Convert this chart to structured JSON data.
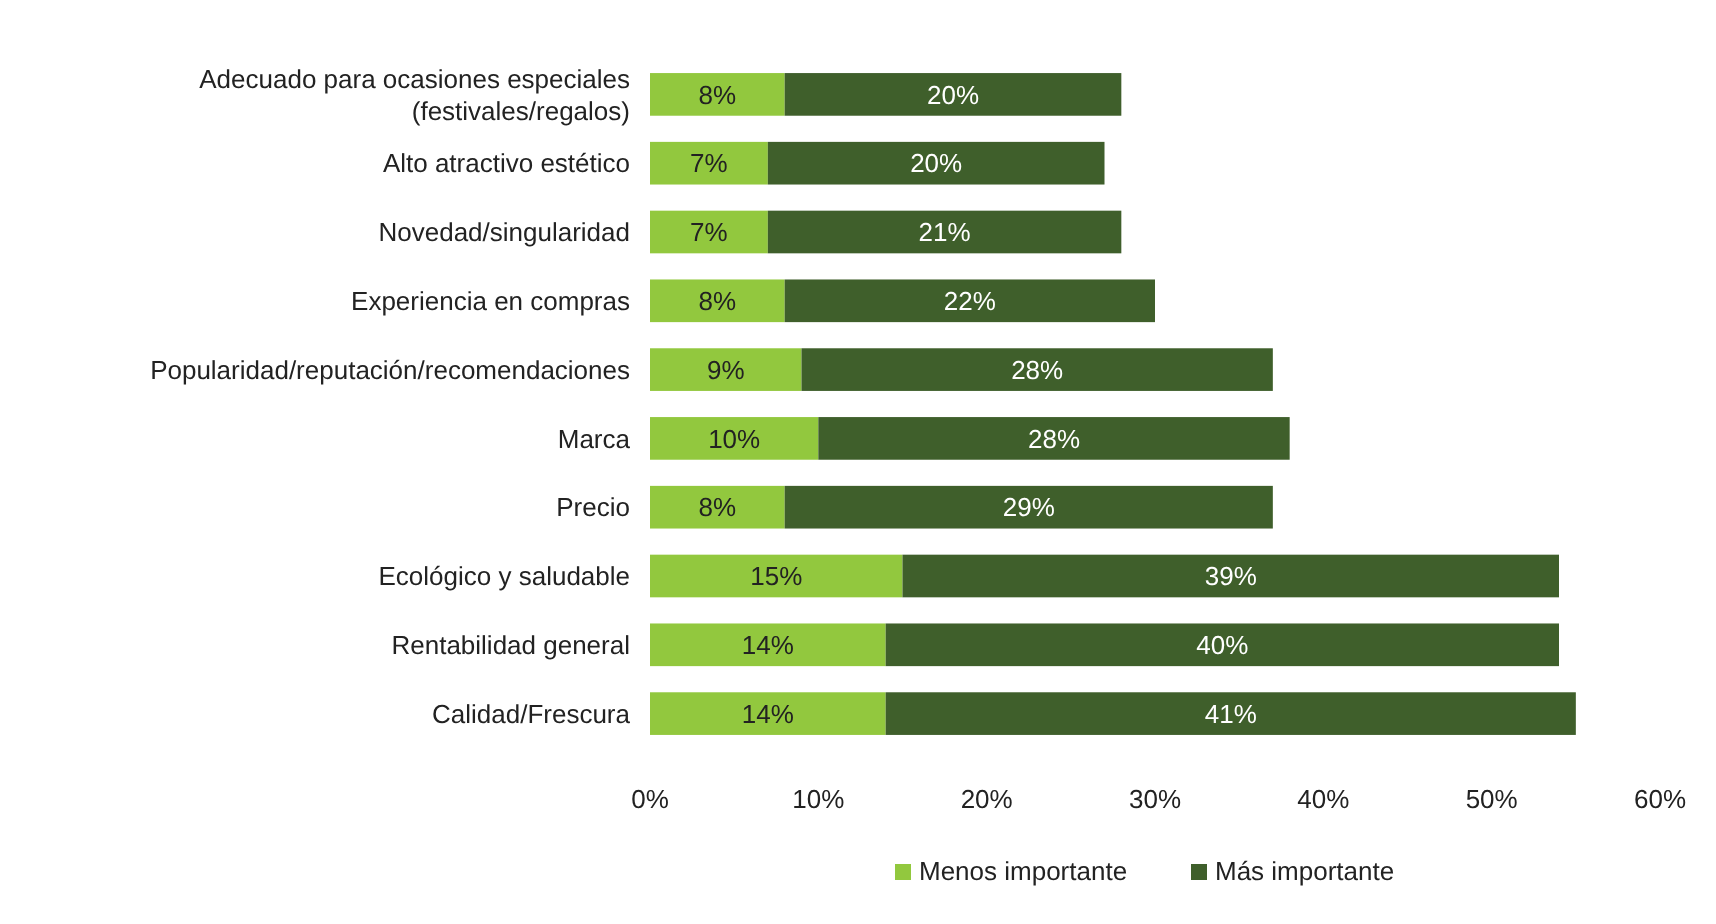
{
  "chart_data": {
    "type": "bar",
    "orientation": "horizontal",
    "stacked": true,
    "categories": [
      "Adecuado para ocasiones especiales\n(festivales/regalos)",
      "Alto atractivo estético",
      "Novedad/singularidad",
      "Experiencia en compras",
      "Popularidad/reputación/recomendaciones",
      "Marca",
      "Precio",
      "Ecológico y saludable",
      "Rentabilidad general",
      "Calidad/Frescura"
    ],
    "series": [
      {
        "name": "Menos importante",
        "color": "#92c83e",
        "values": [
          8,
          7,
          7,
          8,
          9,
          10,
          8,
          15,
          14,
          14
        ],
        "value_labels": [
          "8%",
          "7%",
          "7%",
          "8%",
          "9%",
          "10%",
          "8%",
          "15%",
          "14%",
          "14%"
        ]
      },
      {
        "name": "Más importante",
        "color": "#3f5f2b",
        "values": [
          20,
          20,
          21,
          22,
          28,
          28,
          29,
          39,
          40,
          41
        ],
        "value_labels": [
          "20%",
          "20%",
          "21%",
          "22%",
          "28%",
          "28%",
          "29%",
          "39%",
          "40%",
          "41%"
        ]
      }
    ],
    "xlim": [
      0,
      60
    ],
    "xticks": [
      {
        "value": 0,
        "label": "0%"
      },
      {
        "value": 10,
        "label": "10%"
      },
      {
        "value": 20,
        "label": "20%"
      },
      {
        "value": 30,
        "label": "30%"
      },
      {
        "value": 40,
        "label": "40%"
      },
      {
        "value": 50,
        "label": "50%"
      },
      {
        "value": 60,
        "label": "60%"
      }
    ],
    "legend": "bottom"
  }
}
